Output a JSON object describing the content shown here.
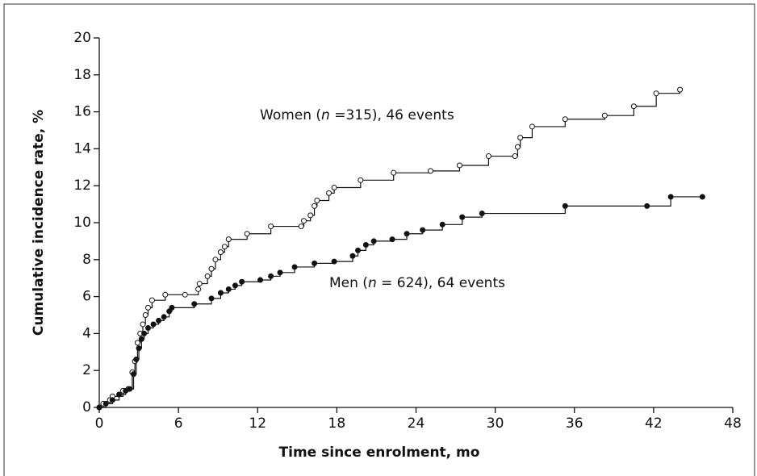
{
  "chart_data": {
    "type": "step",
    "x_label": "Time since enrolment, mo",
    "y_label": "Cumulative incidence rate, %",
    "xlim": [
      0,
      48
    ],
    "xticks": [
      0,
      6,
      12,
      18,
      24,
      30,
      36,
      42,
      48
    ],
    "ylim": [
      0,
      20
    ],
    "yticks": [
      0,
      2,
      4,
      6,
      8,
      10,
      12,
      14,
      16,
      18,
      20
    ],
    "annotations": [
      {
        "parts": [
          "Women (",
          "n",
          " =315), 46 events"
        ]
      },
      {
        "parts": [
          "Men (",
          "n",
          " = 624), 64 events"
        ]
      }
    ],
    "series": [
      {
        "name": "Women",
        "color": "#111111",
        "marker": "open",
        "x": [
          0,
          0.3,
          0.8,
          1,
          1.8,
          2.2,
          2.5,
          2.7,
          2.9,
          3.1,
          3.3,
          3.5,
          3.7,
          4.0,
          5.0,
          6.5,
          7.5,
          7.6,
          8.2,
          8.5,
          8.8,
          9.2,
          9.5,
          9.8,
          11.2,
          13,
          15.3,
          15.5,
          16,
          16.3,
          16.5,
          17.4,
          17.8,
          19.8,
          22.3,
          25.1,
          27.3,
          29.5,
          31.5,
          31.7,
          31.9,
          32.8,
          35.3,
          38.3,
          40.5,
          42.2,
          44
        ],
        "values": [
          0,
          0.2,
          0.4,
          0.6,
          0.9,
          1.0,
          1.9,
          2.5,
          3.5,
          4.0,
          4.5,
          5.0,
          5.4,
          5.8,
          6.1,
          6.1,
          6.4,
          6.7,
          7.1,
          7.5,
          8.0,
          8.4,
          8.7,
          9.1,
          9.4,
          9.8,
          9.8,
          10.1,
          10.4,
          10.9,
          11.2,
          11.6,
          11.9,
          12.3,
          12.7,
          12.8,
          13.1,
          13.6,
          13.6,
          14.1,
          14.6,
          15.2,
          15.6,
          15.8,
          16.3,
          17.0,
          17.2
        ]
      },
      {
        "name": "Men",
        "color": "#111111",
        "marker": "filled",
        "x": [
          0,
          0.5,
          1,
          1.5,
          2,
          2.3,
          2.6,
          2.8,
          3.0,
          3.2,
          3.4,
          3.7,
          4.1,
          4.5,
          4.9,
          5.3,
          5.5,
          7.2,
          8.5,
          9.2,
          9.8,
          10.3,
          10.8,
          12.2,
          13,
          13.7,
          14.8,
          16.3,
          17.8,
          19.2,
          19.6,
          20.2,
          20.8,
          22.2,
          23.3,
          24.5,
          26,
          27.5,
          29,
          35.3,
          41.5,
          43.3,
          45.7
        ],
        "values": [
          0,
          0.2,
          0.4,
          0.7,
          0.9,
          1.0,
          1.8,
          2.6,
          3.2,
          3.7,
          4.0,
          4.3,
          4.5,
          4.7,
          4.9,
          5.2,
          5.4,
          5.6,
          5.9,
          6.2,
          6.4,
          6.6,
          6.8,
          6.9,
          7.1,
          7.3,
          7.6,
          7.8,
          7.9,
          8.2,
          8.5,
          8.8,
          9.0,
          9.1,
          9.4,
          9.6,
          9.9,
          10.3,
          10.5,
          10.9,
          10.9,
          11.4,
          11.4
        ]
      }
    ]
  }
}
